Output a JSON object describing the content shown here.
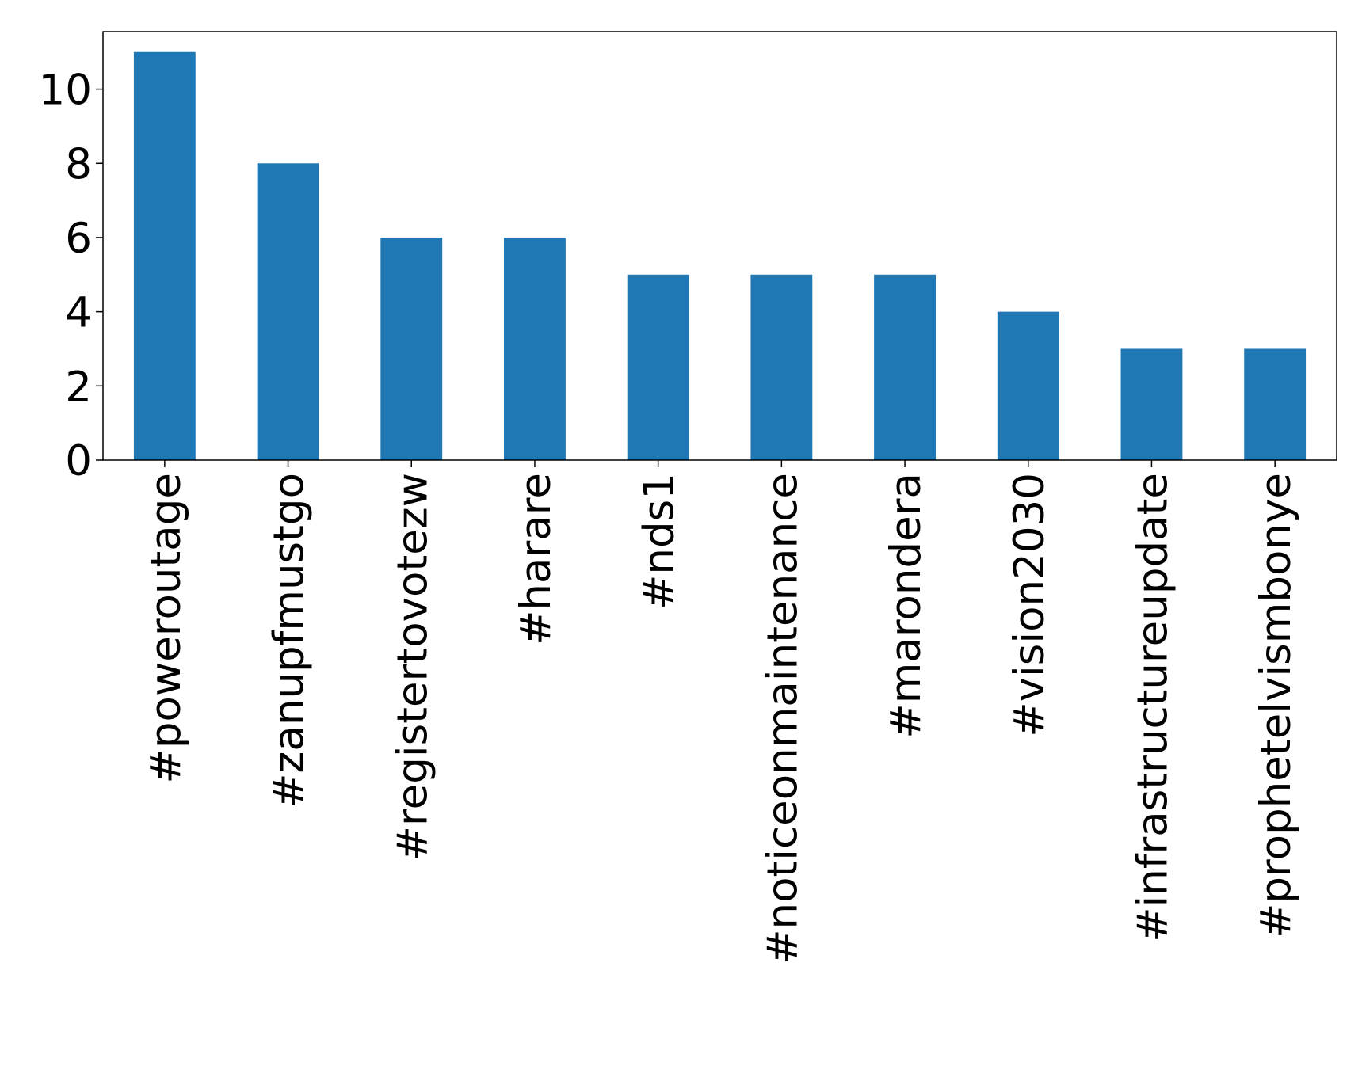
{
  "chart_data": {
    "type": "bar",
    "categories": [
      "#poweroutage",
      "#zanupfmustgo",
      "#registertovotezw",
      "#harare",
      "#nds1",
      "#noticeonmaintenance",
      "#marondera",
      "#vision2030",
      "#infrastructureupdate",
      "#prophetelvismbonye"
    ],
    "values": [
      11,
      8,
      6,
      6,
      5,
      5,
      5,
      4,
      3,
      3
    ],
    "color": "#1f77b4",
    "ylim": [
      0,
      11.55
    ],
    "yticks": [
      0,
      2,
      4,
      6,
      8,
      10
    ],
    "grid": false
  }
}
